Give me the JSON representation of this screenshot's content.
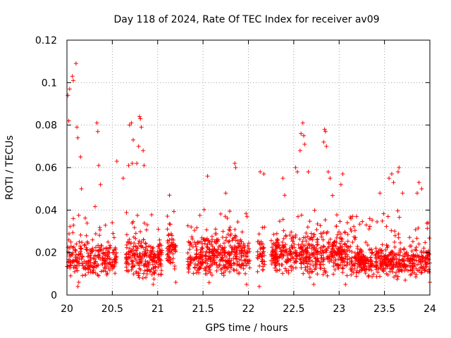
{
  "chart_data": {
    "type": "scatter",
    "title": "Day 118 of 2024, Rate Of TEC Index for receiver av09",
    "xlabel": "GPS time / hours",
    "ylabel": "ROTI / TECUs",
    "xlim": [
      20,
      24
    ],
    "ylim": [
      0,
      0.12
    ],
    "x_ticks": [
      20,
      20.5,
      21,
      21.5,
      22,
      22.5,
      23,
      23.5,
      24
    ],
    "x_tick_labels": [
      "20",
      "20.5",
      "21",
      "21.5",
      "22",
      "22.5",
      "23",
      "23.5",
      "24"
    ],
    "y_ticks": [
      0,
      0.02,
      0.04,
      0.06,
      0.08,
      0.1,
      0.12
    ],
    "y_tick_labels": [
      "0",
      "0.02",
      "0.04",
      "0.06",
      "0.08",
      "0.1",
      "0.12"
    ],
    "grid": true,
    "marker": "+",
    "marker_color": "#ff0000",
    "series": [
      {
        "name": "ROTI",
        "segments": [
          {
            "x_start": 20.0,
            "x_end": 20.55,
            "base": 0.017,
            "spread": 0.012,
            "count": 260
          },
          {
            "x_start": 20.65,
            "x_end": 21.05,
            "base": 0.017,
            "spread": 0.012,
            "count": 230
          },
          {
            "x_start": 21.1,
            "x_end": 21.2,
            "base": 0.022,
            "spread": 0.012,
            "count": 60
          },
          {
            "x_start": 21.33,
            "x_end": 22.02,
            "base": 0.018,
            "spread": 0.013,
            "count": 400
          },
          {
            "x_start": 22.1,
            "x_end": 22.18,
            "base": 0.02,
            "spread": 0.012,
            "count": 45
          },
          {
            "x_start": 22.25,
            "x_end": 23.1,
            "base": 0.019,
            "spread": 0.013,
            "count": 480
          },
          {
            "x_start": 23.1,
            "x_end": 24.0,
            "base": 0.016,
            "spread": 0.01,
            "count": 500
          }
        ],
        "peaks": [
          {
            "x": 20.01,
            "y": 0.094
          },
          {
            "x": 20.03,
            "y": 0.097
          },
          {
            "x": 20.06,
            "y": 0.103
          },
          {
            "x": 20.07,
            "y": 0.101
          },
          {
            "x": 20.1,
            "y": 0.109
          },
          {
            "x": 20.02,
            "y": 0.082
          },
          {
            "x": 20.12,
            "y": 0.074
          },
          {
            "x": 20.11,
            "y": 0.079
          },
          {
            "x": 20.15,
            "y": 0.065
          },
          {
            "x": 20.16,
            "y": 0.05
          },
          {
            "x": 20.33,
            "y": 0.081
          },
          {
            "x": 20.34,
            "y": 0.077
          },
          {
            "x": 20.35,
            "y": 0.061
          },
          {
            "x": 20.37,
            "y": 0.052
          },
          {
            "x": 20.69,
            "y": 0.08
          },
          {
            "x": 20.71,
            "y": 0.081
          },
          {
            "x": 20.68,
            "y": 0.061
          },
          {
            "x": 20.72,
            "y": 0.062
          },
          {
            "x": 20.73,
            "y": 0.073
          },
          {
            "x": 20.77,
            "y": 0.062
          },
          {
            "x": 20.8,
            "y": 0.084
          },
          {
            "x": 20.81,
            "y": 0.083
          },
          {
            "x": 20.82,
            "y": 0.079
          },
          {
            "x": 20.79,
            "y": 0.07
          },
          {
            "x": 20.84,
            "y": 0.068
          },
          {
            "x": 20.85,
            "y": 0.061
          },
          {
            "x": 20.55,
            "y": 0.063
          },
          {
            "x": 20.62,
            "y": 0.055
          },
          {
            "x": 21.13,
            "y": 0.047
          },
          {
            "x": 21.55,
            "y": 0.056
          },
          {
            "x": 21.85,
            "y": 0.062
          },
          {
            "x": 21.86,
            "y": 0.06
          },
          {
            "x": 21.75,
            "y": 0.048
          },
          {
            "x": 22.13,
            "y": 0.058
          },
          {
            "x": 22.17,
            "y": 0.057
          },
          {
            "x": 22.38,
            "y": 0.055
          },
          {
            "x": 22.4,
            "y": 0.047
          },
          {
            "x": 22.52,
            "y": 0.06
          },
          {
            "x": 22.54,
            "y": 0.058
          },
          {
            "x": 22.58,
            "y": 0.076
          },
          {
            "x": 22.6,
            "y": 0.081
          },
          {
            "x": 22.61,
            "y": 0.075
          },
          {
            "x": 22.57,
            "y": 0.068
          },
          {
            "x": 22.62,
            "y": 0.071
          },
          {
            "x": 22.66,
            "y": 0.058
          },
          {
            "x": 22.84,
            "y": 0.078
          },
          {
            "x": 22.85,
            "y": 0.077
          },
          {
            "x": 22.83,
            "y": 0.072
          },
          {
            "x": 22.86,
            "y": 0.07
          },
          {
            "x": 22.88,
            "y": 0.058
          },
          {
            "x": 22.9,
            "y": 0.055
          },
          {
            "x": 23.04,
            "y": 0.057
          },
          {
            "x": 23.02,
            "y": 0.052
          },
          {
            "x": 23.45,
            "y": 0.048
          },
          {
            "x": 23.55,
            "y": 0.055
          },
          {
            "x": 23.58,
            "y": 0.057
          },
          {
            "x": 23.66,
            "y": 0.06
          },
          {
            "x": 23.65,
            "y": 0.058
          },
          {
            "x": 23.6,
            "y": 0.053
          },
          {
            "x": 23.7,
            "y": 0.048
          },
          {
            "x": 23.88,
            "y": 0.053
          },
          {
            "x": 23.91,
            "y": 0.05
          },
          {
            "x": 23.86,
            "y": 0.048
          },
          {
            "x": 23.98,
            "y": 0.034
          },
          {
            "x": 24.0,
            "y": 0.006
          },
          {
            "x": 20.13,
            "y": 0.006
          },
          {
            "x": 20.12,
            "y": 0.004
          },
          {
            "x": 20.95,
            "y": 0.005
          },
          {
            "x": 21.2,
            "y": 0.006
          },
          {
            "x": 21.98,
            "y": 0.005
          },
          {
            "x": 22.12,
            "y": 0.004
          },
          {
            "x": 22.72,
            "y": 0.005
          },
          {
            "x": 23.07,
            "y": 0.005
          }
        ]
      }
    ]
  }
}
